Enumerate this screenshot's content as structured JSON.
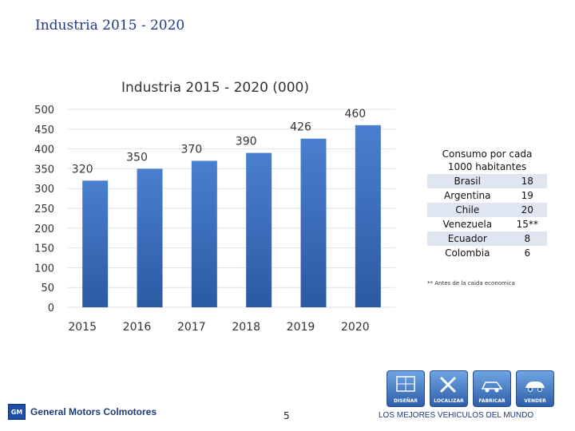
{
  "slide_title": "Industria 2015 - 2020",
  "chart_data": {
    "type": "bar",
    "title": "Industria 2015 - 2020 (000)",
    "categories": [
      "2015",
      "2016",
      "2017",
      "2018",
      "2019",
      "2020"
    ],
    "values": [
      320,
      350,
      370,
      390,
      426,
      460
    ],
    "data_labels": [
      "320",
      "350",
      "370",
      "390",
      "426",
      "460"
    ],
    "yticks": [
      0,
      50,
      100,
      150,
      200,
      250,
      300,
      350,
      400,
      450,
      500
    ],
    "ylim": [
      0,
      500
    ],
    "grid": true,
    "bar_color": "#3a6fbf"
  },
  "consumo": {
    "header": "Consumo por cada 1000 habitantes",
    "rows": [
      {
        "country": "Brasil",
        "value": "18"
      },
      {
        "country": "Argentina",
        "value": "19"
      },
      {
        "country": "Chile",
        "value": "20"
      },
      {
        "country": "Venezuela",
        "value": "15**"
      },
      {
        "country": "Ecuador",
        "value": "8"
      },
      {
        "country": "Colombia",
        "value": "6"
      }
    ]
  },
  "footnote": "** Antes de la caida economica",
  "footer": {
    "logo_badge": "GM",
    "logo_text": "General Motors Colmotores",
    "page_number": "5",
    "tagline": "LOS MEJORES VEHICULOS DEL MUNDO",
    "icons": [
      {
        "label": "DISEÑAR",
        "icon": "design-icon"
      },
      {
        "label": "LOCALIZAR",
        "icon": "tools-icon"
      },
      {
        "label": "FABRICAR",
        "icon": "car-body-icon"
      },
      {
        "label": "VENDER",
        "icon": "car-icon"
      }
    ]
  }
}
